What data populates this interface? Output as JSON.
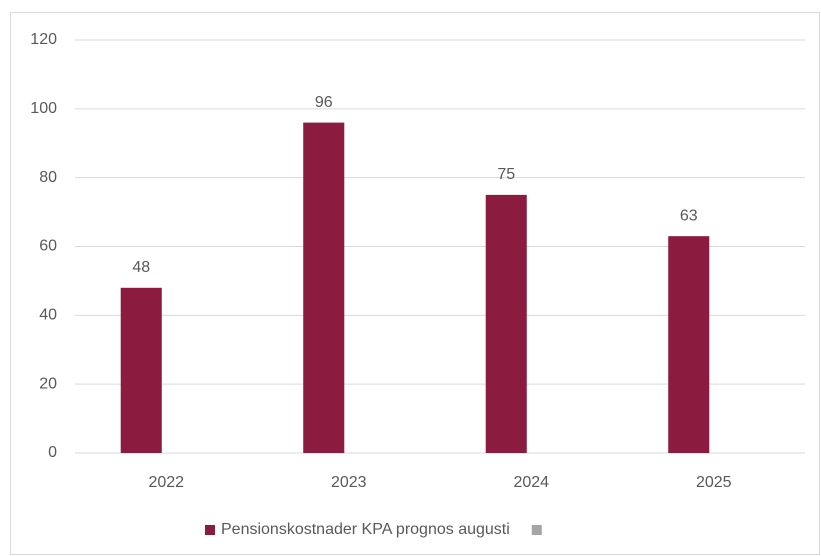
{
  "chart_data": {
    "type": "bar",
    "categories": [
      "2022",
      "2023",
      "2024",
      "2025"
    ],
    "series": [
      {
        "name": "Pensionskostnader KPA prognos augusti",
        "color": "#8b1c3f",
        "values": [
          48,
          96,
          75,
          63
        ]
      },
      {
        "color": "#a5a5a5",
        "values": [
          null,
          null,
          null,
          null
        ]
      }
    ],
    "ylim": [
      0,
      120
    ],
    "yticks": [
      0,
      20,
      40,
      60,
      80,
      100,
      120
    ],
    "grid": true,
    "legend": "bottom",
    "data_labels": true
  }
}
